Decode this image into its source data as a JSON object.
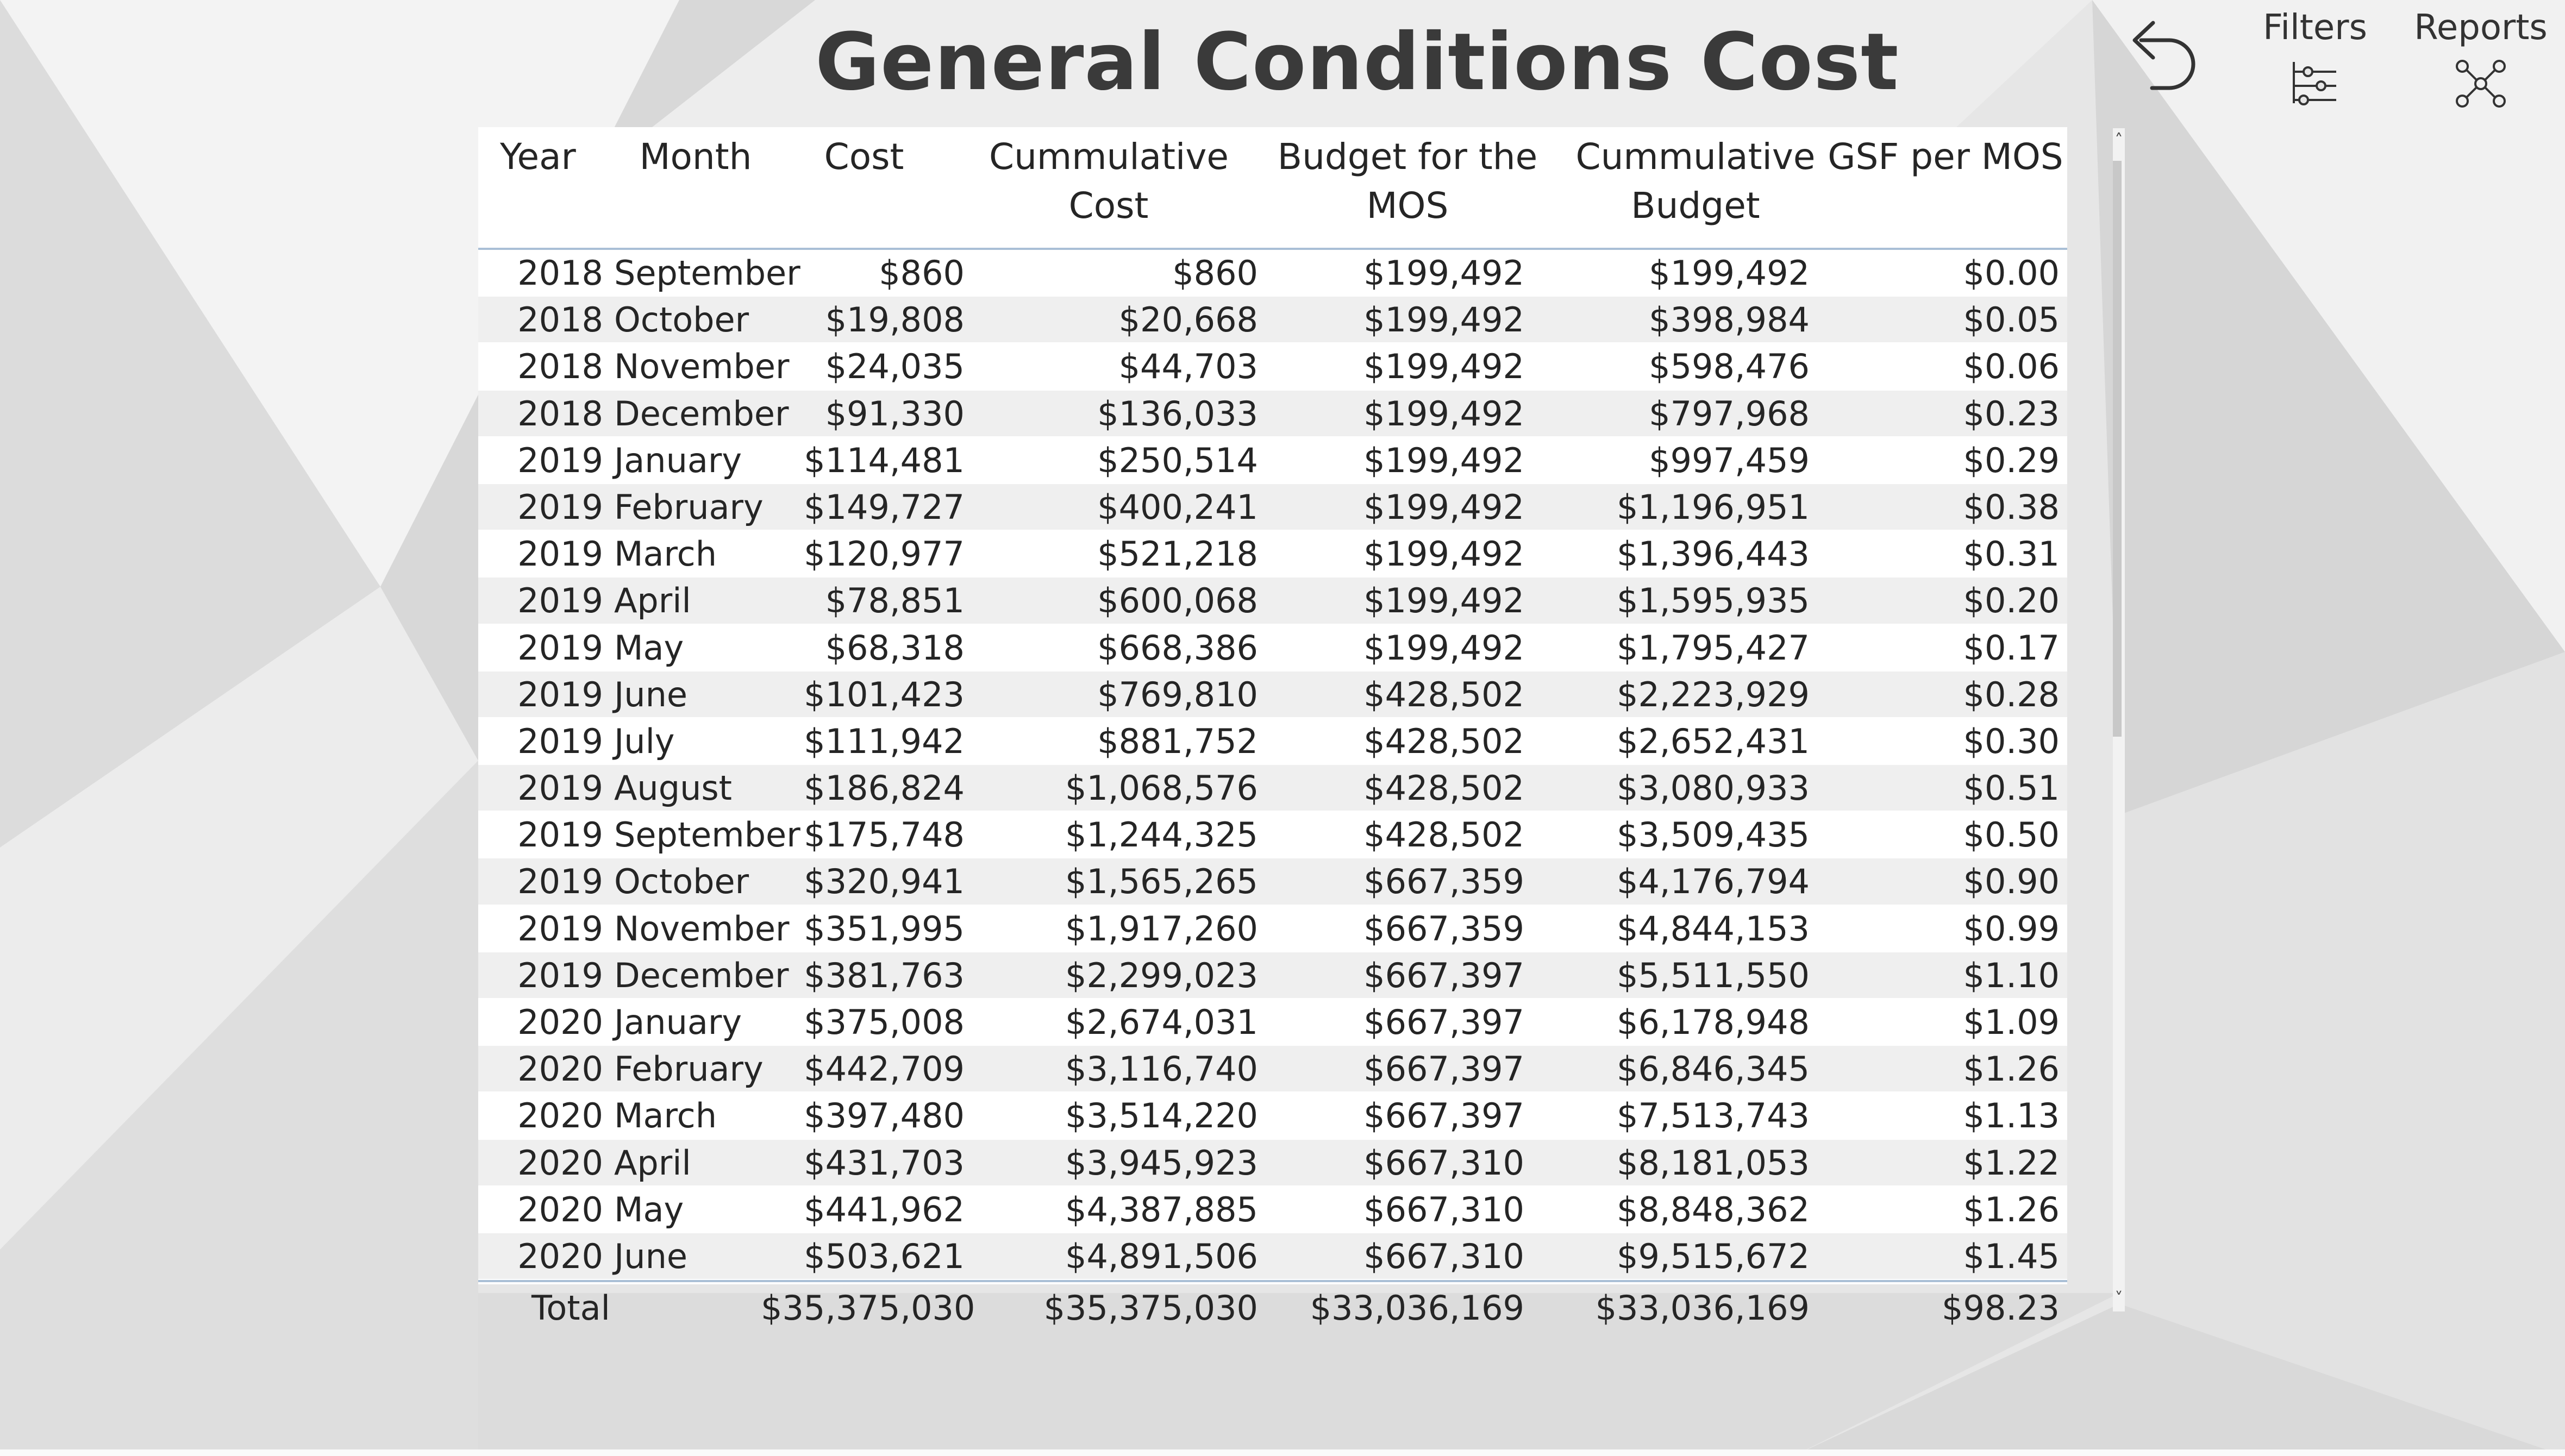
{
  "report": {
    "title": "General Conditions Cost"
  },
  "toolbar": {
    "back_icon": "undo-arrow-icon",
    "filters_label": "Filters",
    "filters_icon": "filter-sliders-icon",
    "reports_label": "Reports",
    "reports_icon": "network-nodes-icon"
  },
  "table": {
    "columns": [
      "Year",
      "Month",
      "Cost",
      "Cummulative Cost",
      "Budget for the MOS",
      "Cummulative Budget",
      "GSF per MOS"
    ],
    "header": {
      "year": "Year",
      "month": "Month",
      "cost": "Cost",
      "cum_cost_1": "Cummulative",
      "cum_cost_2": "Cost",
      "budget_1": "Budget for the",
      "budget_2": "MOS",
      "cum_budget_1": "Cummulative",
      "cum_budget_2": "Budget",
      "gsf": "GSF per MOS"
    },
    "rows": [
      {
        "year": "2018",
        "month": "September",
        "cost": "$860",
        "cum_cost": "$860",
        "budget": "$199,492",
        "cum_budget": "$199,492",
        "gsf": "$0.00"
      },
      {
        "year": "2018",
        "month": "October",
        "cost": "$19,808",
        "cum_cost": "$20,668",
        "budget": "$199,492",
        "cum_budget": "$398,984",
        "gsf": "$0.05"
      },
      {
        "year": "2018",
        "month": "November",
        "cost": "$24,035",
        "cum_cost": "$44,703",
        "budget": "$199,492",
        "cum_budget": "$598,476",
        "gsf": "$0.06"
      },
      {
        "year": "2018",
        "month": "December",
        "cost": "$91,330",
        "cum_cost": "$136,033",
        "budget": "$199,492",
        "cum_budget": "$797,968",
        "gsf": "$0.23"
      },
      {
        "year": "2019",
        "month": "January",
        "cost": "$114,481",
        "cum_cost": "$250,514",
        "budget": "$199,492",
        "cum_budget": "$997,459",
        "gsf": "$0.29"
      },
      {
        "year": "2019",
        "month": "February",
        "cost": "$149,727",
        "cum_cost": "$400,241",
        "budget": "$199,492",
        "cum_budget": "$1,196,951",
        "gsf": "$0.38"
      },
      {
        "year": "2019",
        "month": "March",
        "cost": "$120,977",
        "cum_cost": "$521,218",
        "budget": "$199,492",
        "cum_budget": "$1,396,443",
        "gsf": "$0.31"
      },
      {
        "year": "2019",
        "month": "April",
        "cost": "$78,851",
        "cum_cost": "$600,068",
        "budget": "$199,492",
        "cum_budget": "$1,595,935",
        "gsf": "$0.20"
      },
      {
        "year": "2019",
        "month": "May",
        "cost": "$68,318",
        "cum_cost": "$668,386",
        "budget": "$199,492",
        "cum_budget": "$1,795,427",
        "gsf": "$0.17"
      },
      {
        "year": "2019",
        "month": "June",
        "cost": "$101,423",
        "cum_cost": "$769,810",
        "budget": "$428,502",
        "cum_budget": "$2,223,929",
        "gsf": "$0.28"
      },
      {
        "year": "2019",
        "month": "July",
        "cost": "$111,942",
        "cum_cost": "$881,752",
        "budget": "$428,502",
        "cum_budget": "$2,652,431",
        "gsf": "$0.30"
      },
      {
        "year": "2019",
        "month": "August",
        "cost": "$186,824",
        "cum_cost": "$1,068,576",
        "budget": "$428,502",
        "cum_budget": "$3,080,933",
        "gsf": "$0.51"
      },
      {
        "year": "2019",
        "month": "September",
        "cost": "$175,748",
        "cum_cost": "$1,244,325",
        "budget": "$428,502",
        "cum_budget": "$3,509,435",
        "gsf": "$0.50"
      },
      {
        "year": "2019",
        "month": "October",
        "cost": "$320,941",
        "cum_cost": "$1,565,265",
        "budget": "$667,359",
        "cum_budget": "$4,176,794",
        "gsf": "$0.90"
      },
      {
        "year": "2019",
        "month": "November",
        "cost": "$351,995",
        "cum_cost": "$1,917,260",
        "budget": "$667,359",
        "cum_budget": "$4,844,153",
        "gsf": "$0.99"
      },
      {
        "year": "2019",
        "month": "December",
        "cost": "$381,763",
        "cum_cost": "$2,299,023",
        "budget": "$667,397",
        "cum_budget": "$5,511,550",
        "gsf": "$1.10"
      },
      {
        "year": "2020",
        "month": "January",
        "cost": "$375,008",
        "cum_cost": "$2,674,031",
        "budget": "$667,397",
        "cum_budget": "$6,178,948",
        "gsf": "$1.09"
      },
      {
        "year": "2020",
        "month": "February",
        "cost": "$442,709",
        "cum_cost": "$3,116,740",
        "budget": "$667,397",
        "cum_budget": "$6,846,345",
        "gsf": "$1.26"
      },
      {
        "year": "2020",
        "month": "March",
        "cost": "$397,480",
        "cum_cost": "$3,514,220",
        "budget": "$667,397",
        "cum_budget": "$7,513,743",
        "gsf": "$1.13"
      },
      {
        "year": "2020",
        "month": "April",
        "cost": "$431,703",
        "cum_cost": "$3,945,923",
        "budget": "$667,310",
        "cum_budget": "$8,181,053",
        "gsf": "$1.22"
      },
      {
        "year": "2020",
        "month": "May",
        "cost": "$441,962",
        "cum_cost": "$4,387,885",
        "budget": "$667,310",
        "cum_budget": "$8,848,362",
        "gsf": "$1.26"
      },
      {
        "year": "2020",
        "month": "June",
        "cost": "$503,621",
        "cum_cost": "$4,891,506",
        "budget": "$667,310",
        "cum_budget": "$9,515,672",
        "gsf": "$1.45"
      }
    ],
    "total": {
      "label": "Total",
      "cost": "$35,375,030",
      "cum_cost": "$35,375,030",
      "budget": "$33,036,169",
      "cum_budget": "$33,036,169",
      "gsf": "$98.23"
    }
  },
  "scroll": {
    "up_arrow": "˄",
    "down_arrow": "˅"
  },
  "colors": {
    "header_rule": "#a9bfd6",
    "row_alt": "#efefef",
    "text": "#252525"
  }
}
